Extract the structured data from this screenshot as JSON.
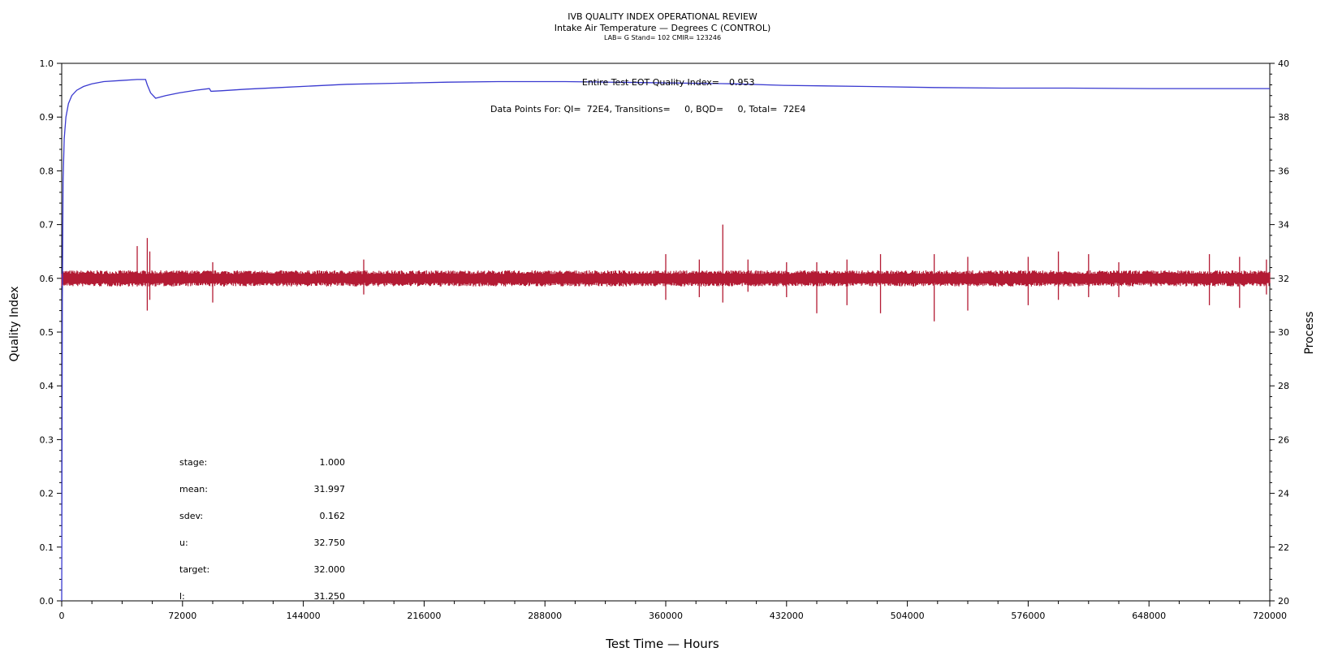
{
  "header": {
    "title": "IVB QUALITY INDEX OPERATIONAL REVIEW",
    "subtitle": "Intake Air Temperature — Degrees C (CONTROL)",
    "info": "LAB= G Stand= 102 CMIR= 123246"
  },
  "chart_data": {
    "type": "line",
    "xlabel": "Test Time — Hours",
    "ylabel_left": "Quality Index",
    "ylabel_right": "Process",
    "xlim": [
      0,
      720000
    ],
    "ylim_left": [
      0.0,
      1.0
    ],
    "ylim_right": [
      20,
      40
    ],
    "x_ticks": [
      "0",
      "72000",
      "144000",
      "216000",
      "288000",
      "360000",
      "432000",
      "504000",
      "576000",
      "648000",
      "720000"
    ],
    "y_left_ticks": [
      "0.0",
      "0.1",
      "0.2",
      "0.3",
      "0.4",
      "0.5",
      "0.6",
      "0.7",
      "0.8",
      "0.9",
      "1.0"
    ],
    "y_right_ticks": [
      "20",
      "22",
      "24",
      "26",
      "28",
      "30",
      "32",
      "34",
      "36",
      "38",
      "40"
    ],
    "grid": false,
    "colors": {
      "quality": "#3a3ad0",
      "process": "#b31b34"
    },
    "series": [
      {
        "axis": "left",
        "x": [
          0,
          400,
          800,
          1500,
          2500,
          4000,
          6000,
          9000,
          13000,
          18000,
          25000,
          35000,
          45000,
          50000,
          51000,
          53000,
          56000,
          62000,
          70000,
          80000,
          88000,
          89000,
          95000,
          110000,
          130000,
          150000,
          170000,
          200000,
          230000,
          260000,
          300000,
          350000,
          400000,
          430000,
          480000,
          520000,
          560000,
          600000,
          650000,
          690000,
          720000
        ],
        "values": [
          0.0,
          0.56,
          0.78,
          0.86,
          0.9,
          0.925,
          0.94,
          0.95,
          0.957,
          0.962,
          0.966,
          0.968,
          0.97,
          0.97,
          0.96,
          0.945,
          0.935,
          0.94,
          0.945,
          0.95,
          0.953,
          0.948,
          0.949,
          0.952,
          0.955,
          0.958,
          0.961,
          0.963,
          0.965,
          0.966,
          0.966,
          0.964,
          0.962,
          0.959,
          0.957,
          0.955,
          0.954,
          0.954,
          0.953,
          0.953,
          0.953
        ]
      },
      {
        "axis": "right",
        "mean": 31.997,
        "noise_band": [
          31.7,
          32.3
        ],
        "spikes": [
          {
            "x": 45000,
            "hi": 33.2,
            "lo": 31.7
          },
          {
            "x": 51000,
            "hi": 33.5,
            "lo": 30.8
          },
          {
            "x": 52500,
            "hi": 33.0,
            "lo": 31.2
          },
          {
            "x": 90000,
            "hi": 32.6,
            "lo": 31.1
          },
          {
            "x": 180000,
            "hi": 32.7,
            "lo": 31.4
          },
          {
            "x": 360000,
            "hi": 32.9,
            "lo": 31.2
          },
          {
            "x": 380000,
            "hi": 32.7,
            "lo": 31.3
          },
          {
            "x": 394000,
            "hi": 34.0,
            "lo": 31.1
          },
          {
            "x": 409000,
            "hi": 32.7,
            "lo": 31.5
          },
          {
            "x": 432000,
            "hi": 32.6,
            "lo": 31.3
          },
          {
            "x": 450000,
            "hi": 32.6,
            "lo": 30.7
          },
          {
            "x": 468000,
            "hi": 32.7,
            "lo": 31.0
          },
          {
            "x": 488000,
            "hi": 32.9,
            "lo": 30.7
          },
          {
            "x": 520000,
            "hi": 32.9,
            "lo": 30.4
          },
          {
            "x": 540000,
            "hi": 32.8,
            "lo": 30.8
          },
          {
            "x": 576000,
            "hi": 32.8,
            "lo": 31.0
          },
          {
            "x": 594000,
            "hi": 33.0,
            "lo": 31.2
          },
          {
            "x": 612000,
            "hi": 32.9,
            "lo": 31.3
          },
          {
            "x": 630000,
            "hi": 32.6,
            "lo": 31.3
          },
          {
            "x": 684000,
            "hi": 32.9,
            "lo": 31.0
          },
          {
            "x": 702000,
            "hi": 32.8,
            "lo": 30.9
          },
          {
            "x": 718000,
            "hi": 32.7,
            "lo": 31.4
          }
        ]
      }
    ],
    "annotations": {
      "eot_label": "Entire Test EOT Quality Index=",
      "eot_value": "0.953",
      "points_line": "Data Points For: QI=  72E4, Transitions=     0, BQD=     0, Total=  72E4"
    },
    "stats": [
      {
        "label": "stage:",
        "value": "1.000"
      },
      {
        "label": "mean:",
        "value": "31.997"
      },
      {
        "label": "sdev:",
        "value": "0.162"
      },
      {
        "label": "u:",
        "value": "32.750"
      },
      {
        "label": "target:",
        "value": "32.000"
      },
      {
        "label": "l:",
        "value": "31.250"
      }
    ]
  }
}
